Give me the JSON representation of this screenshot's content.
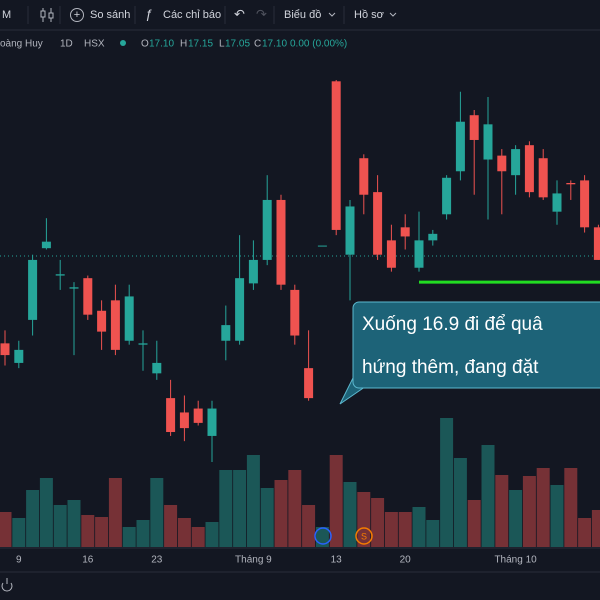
{
  "toolbar": {
    "interval": "M",
    "compare": "So sánh",
    "indicators": "Các chỉ báo",
    "chart": "Biểu đồ",
    "profile": "Hồ sơ"
  },
  "legend": {
    "symbol": "oàng Huy",
    "interval": "1D",
    "exchange": "HSX",
    "o_label": "O",
    "o": "17.10",
    "h_label": "H",
    "h": "17.15",
    "l_label": "L",
    "l": "17.05",
    "c_label": "C",
    "c": "17.10",
    "change": "0.00 (0.00%)"
  },
  "annotation": {
    "lines": [
      "Xuống 16.9 đi để quâ",
      "hứng thêm, đang đặt"
    ]
  },
  "events": {
    "earnings": "S"
  },
  "chart_data": {
    "type": "candlestick",
    "categories": [
      null,
      "9",
      null,
      null,
      null,
      null,
      "16",
      null,
      null,
      null,
      null,
      "23",
      null,
      null,
      null,
      null,
      null,
      null,
      "Tháng 9",
      null,
      null,
      null,
      null,
      null,
      "13",
      null,
      null,
      null,
      null,
      "20",
      null,
      null,
      null,
      null,
      null,
      null,
      null,
      "Tháng 10",
      null,
      null,
      null,
      null,
      null,
      null
    ],
    "open": [
      16.43,
      16.28,
      16.61,
      17.16,
      16.95,
      16.85,
      16.93,
      16.68,
      16.76,
      16.45,
      16.42,
      16.2,
      16.01,
      15.9,
      15.93,
      15.72,
      16.45,
      16.45,
      16.89,
      17.07,
      17.53,
      16.84,
      16.24,
      17.18,
      18.44,
      17.11,
      17.85,
      17.59,
      17.22,
      17.32,
      17.01,
      17.22,
      17.42,
      17.75,
      18.18,
      17.84,
      17.87,
      17.72,
      17.95,
      17.85,
      17.44,
      17.66,
      17.68,
      17.32
    ],
    "high": [
      16.53,
      16.45,
      17.11,
      17.39,
      17.07,
      16.9,
      16.95,
      16.76,
      16.88,
      16.88,
      16.53,
      16.45,
      16.15,
      16.03,
      15.99,
      15.99,
      16.72,
      17.26,
      17.22,
      17.72,
      17.57,
      16.88,
      16.53,
      17.18,
      18.45,
      17.53,
      17.88,
      17.72,
      17.34,
      17.42,
      17.44,
      17.3,
      17.72,
      18.36,
      18.22,
      18.32,
      17.92,
      17.95,
      17.98,
      17.92,
      17.68,
      17.68,
      17.72,
      17.34
    ],
    "low": [
      16.26,
      16.24,
      16.49,
      17.15,
      16.84,
      16.34,
      16.61,
      16.38,
      16.34,
      16.42,
      16.22,
      16.15,
      15.72,
      15.68,
      15.8,
      15.52,
      16.3,
      16.42,
      16.84,
      17.03,
      16.84,
      16.42,
      15.99,
      17.18,
      17.26,
      16.76,
      17.42,
      17.07,
      16.98,
      17.15,
      16.98,
      17.18,
      17.38,
      17.68,
      17.57,
      17.38,
      17.42,
      17.57,
      17.55,
      17.53,
      17.34,
      17.53,
      17.28,
      17.07
    ],
    "close": [
      16.34,
      16.38,
      17.07,
      17.21,
      16.96,
      16.86,
      16.65,
      16.52,
      16.38,
      16.79,
      16.43,
      16.28,
      15.75,
      15.78,
      15.82,
      15.93,
      16.57,
      16.93,
      17.07,
      17.53,
      16.88,
      16.49,
      16.01,
      17.18,
      17.3,
      17.48,
      17.57,
      17.11,
      17.01,
      17.25,
      17.22,
      17.27,
      17.7,
      18.13,
      17.99,
      18.11,
      17.75,
      17.92,
      17.59,
      17.55,
      17.58,
      17.65,
      17.32,
      17.07
    ],
    "volume": [
      35,
      29,
      57,
      69,
      42,
      47,
      32,
      30,
      69,
      20,
      27,
      69,
      42,
      29,
      20,
      25,
      77,
      77,
      92,
      59,
      67,
      77,
      42,
      20,
      92,
      65,
      55,
      49,
      35,
      35,
      40,
      27,
      129,
      89,
      47,
      102,
      72,
      57,
      71,
      79,
      62,
      79,
      29,
      37
    ],
    "up_color": "#26a69a",
    "down_color": "#ef5350",
    "last_price": 17.1,
    "support_line": 16.9,
    "support_color": "#22dd22"
  }
}
